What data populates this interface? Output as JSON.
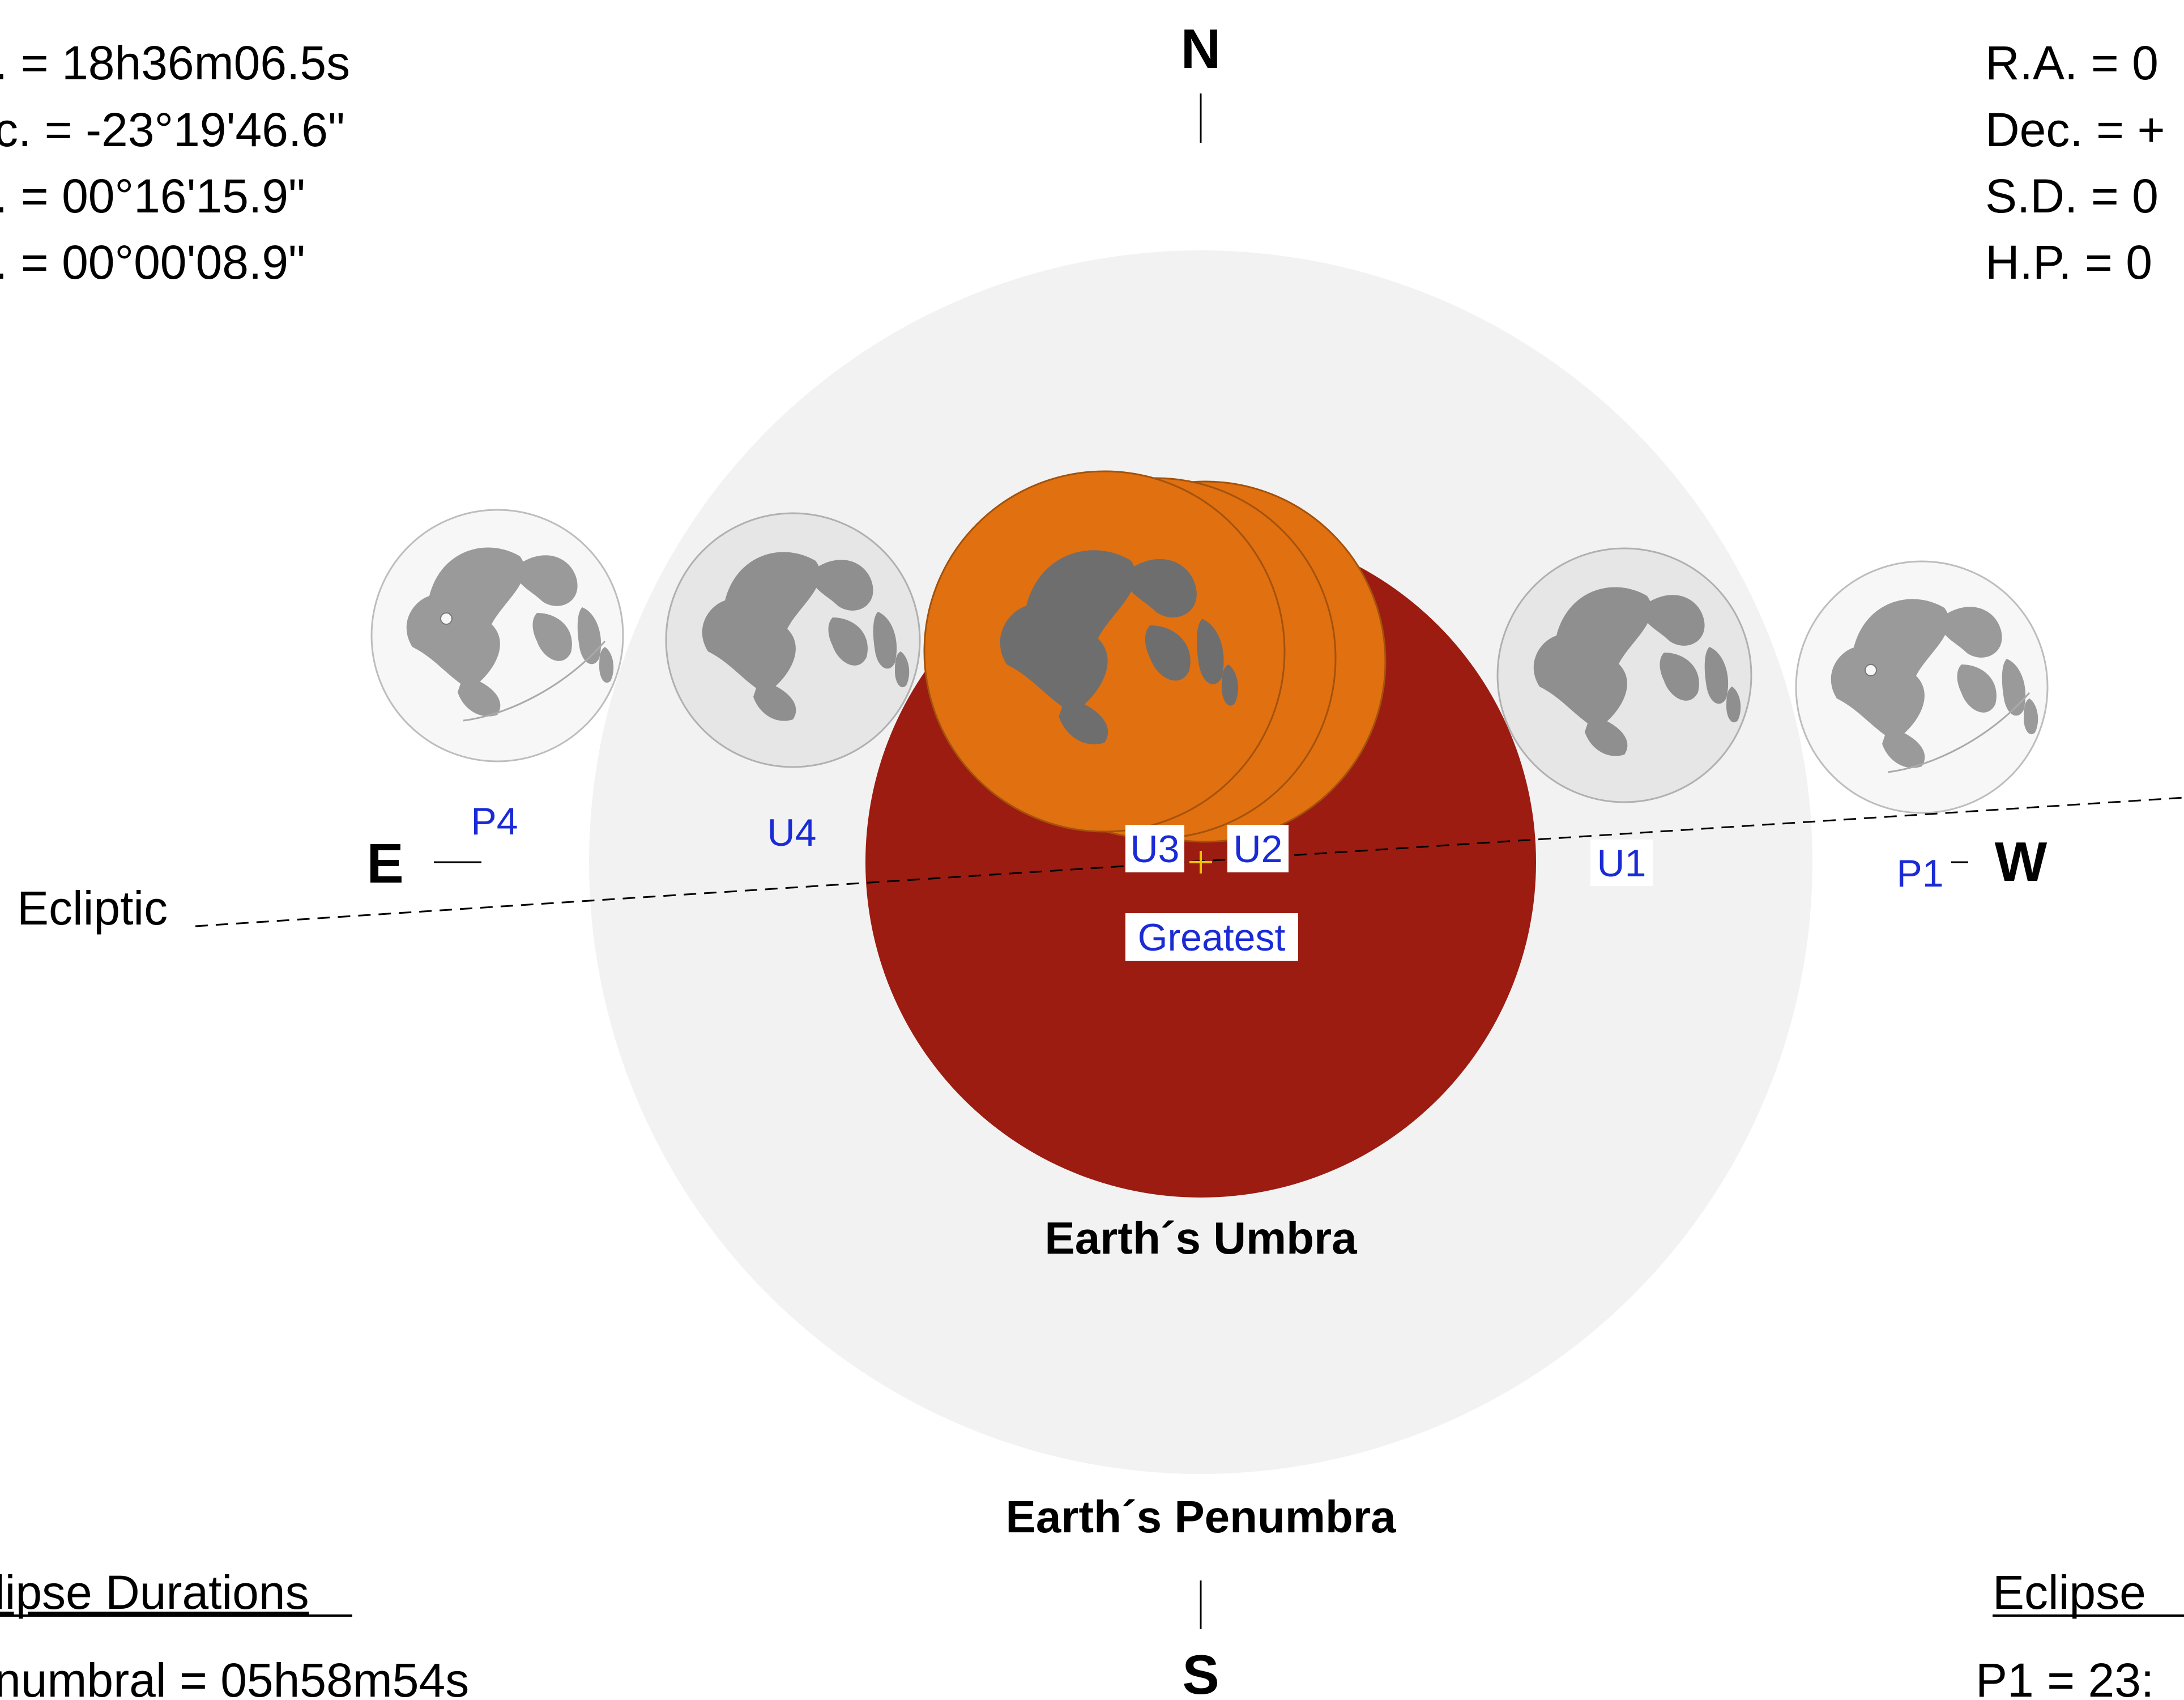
{
  "sun_info": {
    "lines": [
      ".  =  18h36m06.5s",
      "c. = -23°19'46.6\"",
      ".  =  00°16'15.9\"",
      ".  =  00°00'08.9\""
    ]
  },
  "moon_info": {
    "lines": [
      "R.A. =  0",
      "Dec. = +",
      "S.D. =  0",
      "H.P. =  0"
    ]
  },
  "directions": {
    "north": "N",
    "south": "S",
    "east": "E",
    "west": "W"
  },
  "ecliptic_label": "Ecliptic",
  "umbra_label": "Earth´s Umbra",
  "penumbra_label": "Earth´s Penumbra",
  "contacts": {
    "p1": "P1",
    "u1": "U1",
    "u2": "U2",
    "greatest": "Greatest",
    "u3": "U3",
    "u4": "U4",
    "p4": "P4"
  },
  "durations": {
    "heading": "lipse Durations",
    "penumbral": "numbral = 05h58m54s"
  },
  "contact_times": {
    "heading": "Eclipse",
    "p1": "P1 = 23:"
  },
  "colors": {
    "penumbra": "#f2f2f2",
    "umbra": "#9c1c12",
    "moon_eclipsed": "#e07010",
    "moon_dark_maria": "#6e6e6e",
    "moon_light": "#e6e6e6",
    "moon_maria": "#9a9a9a",
    "contact_label": "#1a2bd6",
    "center_cross": "#f0c000"
  }
}
